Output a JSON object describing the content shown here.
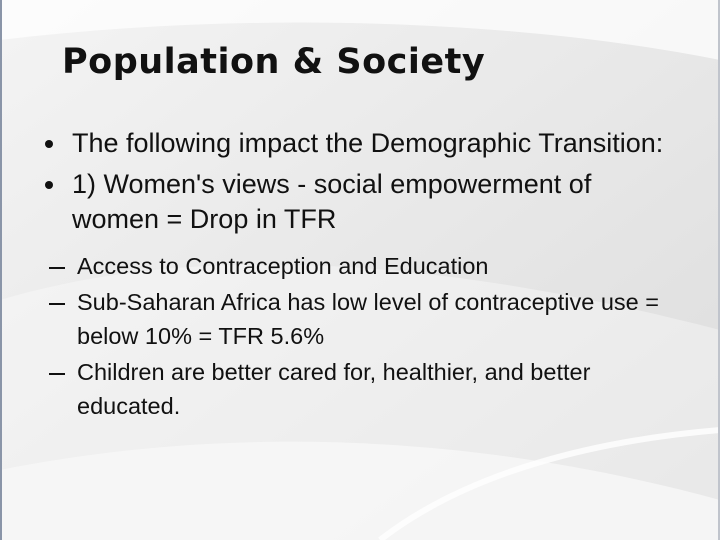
{
  "title": "Population & Society",
  "bullets": [
    {
      "text": "The following impact the Demographic Transition:",
      "sub": []
    },
    {
      "text": "1) Women's views - social empowerment of women = Drop in TFR",
      "sub": [
        "Access to Contraception and Education",
        "Sub-Saharan Africa has low level of contraceptive use = below 10% = TFR 5.6%",
        "Children are better cared for, healthier, and better educated."
      ]
    }
  ]
}
